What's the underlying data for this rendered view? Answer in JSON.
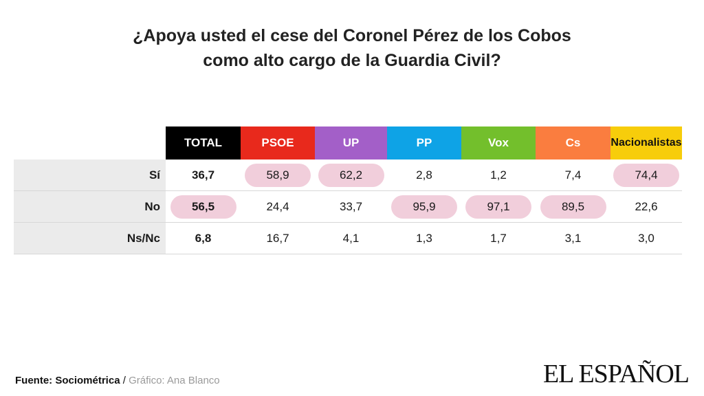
{
  "title": {
    "line1": "¿Apoya usted el cese del Coronel Pérez de los Cobos",
    "line2": "como alto cargo de la Guardia Civil?"
  },
  "chart_data": {
    "type": "table",
    "columns": [
      {
        "label": "TOTAL",
        "color": "#000000",
        "text_color": "#ffffff"
      },
      {
        "label": "PSOE",
        "color": "#e8291c",
        "text_color": "#ffffff"
      },
      {
        "label": "UP",
        "color": "#a35fc8",
        "text_color": "#ffffff"
      },
      {
        "label": "PP",
        "color": "#0ea3e6",
        "text_color": "#ffffff"
      },
      {
        "label": "Vox",
        "color": "#73bf2c",
        "text_color": "#ffffff"
      },
      {
        "label": "Cs",
        "color": "#fa7d3f",
        "text_color": "#ffffff"
      },
      {
        "label": "Nacionalistas",
        "color": "#f7cd0b",
        "text_color": "#111111"
      }
    ],
    "rows": [
      {
        "label": "Sí",
        "values": [
          "36,7",
          "58,9",
          "62,2",
          "2,8",
          "1,2",
          "7,4",
          "74,4"
        ],
        "highlight": [
          false,
          true,
          true,
          false,
          false,
          false,
          true
        ]
      },
      {
        "label": "No",
        "values": [
          "56,5",
          "24,4",
          "33,7",
          "95,9",
          "97,1",
          "89,5",
          "22,6"
        ],
        "highlight": [
          true,
          false,
          false,
          true,
          true,
          true,
          false
        ]
      },
      {
        "label": "Ns/Nc",
        "values": [
          "6,8",
          "16,7",
          "4,1",
          "1,3",
          "1,7",
          "3,1",
          "3,0"
        ],
        "highlight": [
          false,
          false,
          false,
          false,
          false,
          false,
          false
        ]
      }
    ],
    "highlight_color": "#f1cedb"
  },
  "footer": {
    "source": "Fuente: Sociométrica",
    "separator": " / ",
    "credit": "Gráfico: Ana Blanco"
  },
  "logo": {
    "text": "EL ESPAÑOL"
  }
}
